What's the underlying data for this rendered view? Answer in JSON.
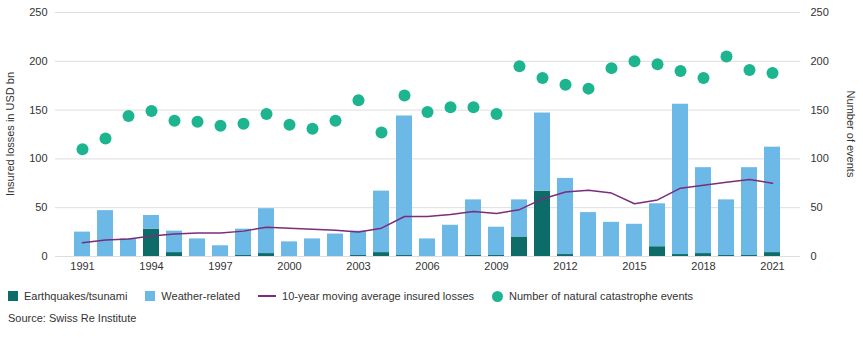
{
  "chart_data": {
    "type": "bar",
    "stacked": true,
    "grid": true,
    "legend": "bottom",
    "y_label": "Insured losses in USD bn",
    "y2_label": "Number of events",
    "source": "Source: Swiss Re Institute",
    "categories": [
      1991,
      1992,
      1993,
      1994,
      1995,
      1996,
      1997,
      1998,
      1999,
      2000,
      2001,
      2002,
      2003,
      2004,
      2005,
      2006,
      2007,
      2008,
      2009,
      2010,
      2011,
      2012,
      2013,
      2014,
      2015,
      2016,
      2017,
      2018,
      2019,
      2020,
      2021
    ],
    "xticks": [
      1991,
      1994,
      1997,
      2000,
      2003,
      2006,
      2009,
      2012,
      2015,
      2018,
      2021
    ],
    "ylim": [
      0,
      250
    ],
    "yticks": [
      0,
      50,
      100,
      150,
      200,
      250
    ],
    "y2lim": [
      0,
      250
    ],
    "y2ticks": [
      0,
      50,
      100,
      150,
      200,
      250
    ],
    "series": [
      {
        "name": "Earthquakes/tsunami",
        "type": "bar",
        "color": "#0d6b68",
        "values": [
          0,
          0,
          0,
          28,
          4,
          0,
          0,
          1,
          3,
          0,
          0,
          0,
          1,
          4,
          1,
          0,
          0,
          1,
          1,
          20,
          67,
          2,
          0,
          0,
          0,
          10,
          2,
          3,
          1,
          1,
          4
        ]
      },
      {
        "name": "Weather-related",
        "type": "bar",
        "color": "#6cb8e6",
        "values": [
          25,
          47,
          18,
          14,
          22,
          18,
          11,
          27,
          46,
          15,
          18,
          23,
          25,
          63,
          143,
          18,
          32,
          57,
          29,
          38,
          80,
          78,
          45,
          35,
          33,
          44,
          154,
          88,
          57,
          90,
          108
        ]
      },
      {
        "name": "10-year moving average insured losses",
        "type": "line",
        "color": "#7b2d7b",
        "values": [
          14,
          17,
          18,
          21,
          23,
          24,
          24,
          26,
          30,
          29,
          28,
          27,
          25,
          29,
          41,
          41,
          43,
          46,
          44,
          48,
          59,
          66,
          68,
          65,
          54,
          58,
          70,
          73,
          76,
          79,
          75
        ]
      },
      {
        "name": "Number of natural catastrophe events",
        "type": "scatter",
        "marker": "circle",
        "axis": "y2",
        "color": "#1db58f",
        "values": [
          110,
          121,
          144,
          149,
          139,
          138,
          134,
          136,
          146,
          135,
          131,
          139,
          160,
          127,
          165,
          148,
          153,
          153,
          146,
          195,
          183,
          176,
          172,
          193,
          200,
          197,
          190,
          183,
          205,
          191,
          188
        ]
      }
    ]
  }
}
